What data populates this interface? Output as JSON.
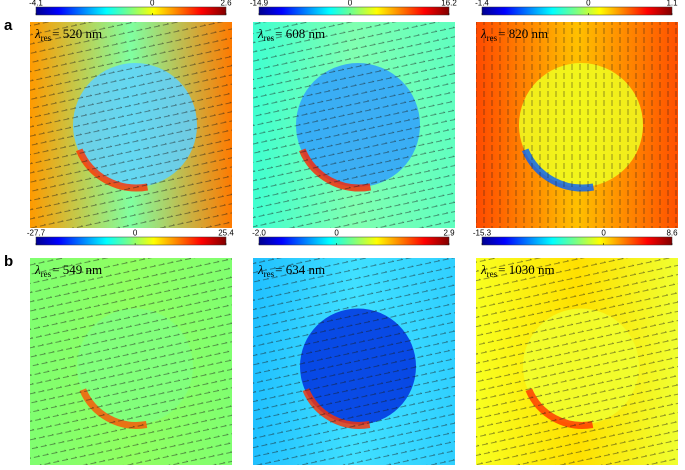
{
  "rows": [
    {
      "label": "a",
      "panels": [
        {
          "ticks": [
            -4.1,
            0,
            2.6
          ],
          "symbol": "λ",
          "sub": "res",
          "text": "= 520 nm"
        },
        {
          "ticks": [
            -14.9,
            0,
            16.2
          ],
          "symbol": "λ",
          "sub": "res",
          "text": "= 608 nm"
        },
        {
          "ticks": [
            -1.4,
            0,
            1.1
          ],
          "symbol": "λ",
          "sub": "res",
          "text": "= 820 nm"
        }
      ]
    },
    {
      "label": "b",
      "panels": [
        {
          "ticks": [
            -27.7,
            0,
            25.4
          ],
          "symbol": "λ",
          "sub": "res",
          "text": "= 549 nm"
        },
        {
          "ticks": [
            {
              "value": -2,
              "label": "-2.0"
            },
            0,
            2.9
          ],
          "symbol": "λ",
          "sub": "res",
          "text": "= 634 nm"
        },
        {
          "ticks": [
            -15.3,
            0,
            8.6
          ],
          "symbol": "λ",
          "sub": "res",
          "text": "= 1030 nm"
        }
      ]
    }
  ]
}
